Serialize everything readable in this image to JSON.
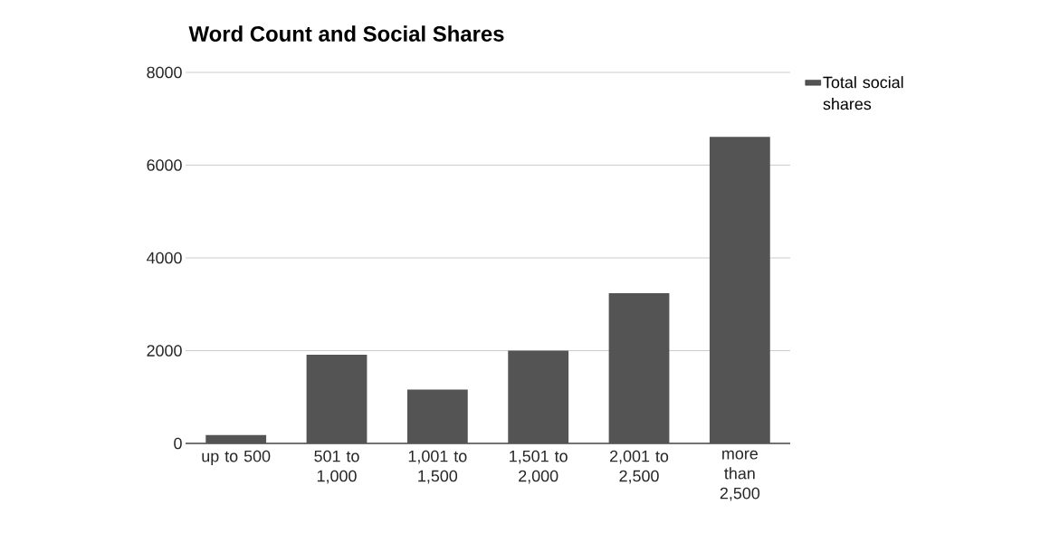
{
  "chart_data": {
    "type": "bar",
    "title": "Word Count and Social Shares",
    "categories": [
      "up to 500",
      "501 to 1,000",
      "1,001 to 1,500",
      "1,501 to 2,000",
      "2,001 to 2,500",
      "more than 2,500"
    ],
    "series": [
      {
        "name": "Total social shares",
        "color": "#545454",
        "values": [
          180,
          1910,
          1160,
          2000,
          3240,
          6610
        ]
      }
    ],
    "ylim": [
      0,
      8000
    ],
    "yticks": [
      0,
      2000,
      4000,
      6000,
      8000
    ],
    "grid": "y",
    "legend": "top right"
  }
}
